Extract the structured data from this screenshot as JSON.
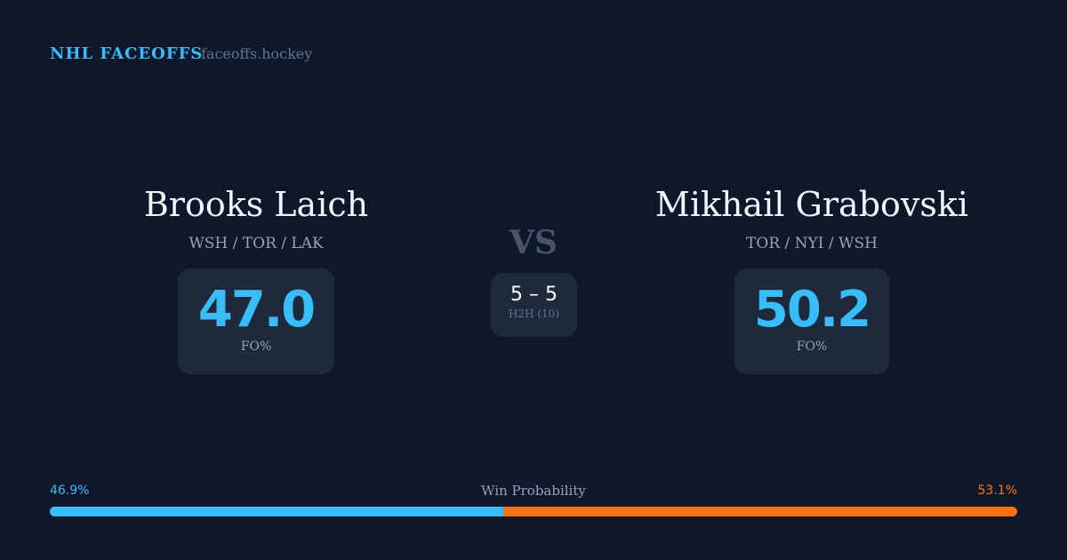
{
  "header": {
    "brand": "NHL FACEOFFS",
    "site": "faceoffs.hockey"
  },
  "left": {
    "name": "Brooks Laich",
    "teams": "WSH / TOR / LAK",
    "fo_pct": "47.0",
    "fo_label": "FO%"
  },
  "right": {
    "name": "Mikhail Grabovski",
    "teams": "TOR / NYI / WSH",
    "fo_pct": "50.2",
    "fo_label": "FO%"
  },
  "vs": "VS",
  "h2h": {
    "score": "5 – 5",
    "label": "H2H (10)"
  },
  "win_probability": {
    "label": "Win Probability",
    "left_pct": "46.9%",
    "right_pct": "53.1%",
    "left_value": 46.9,
    "left_color": "#38bdf8",
    "right_color": "#f97316"
  }
}
